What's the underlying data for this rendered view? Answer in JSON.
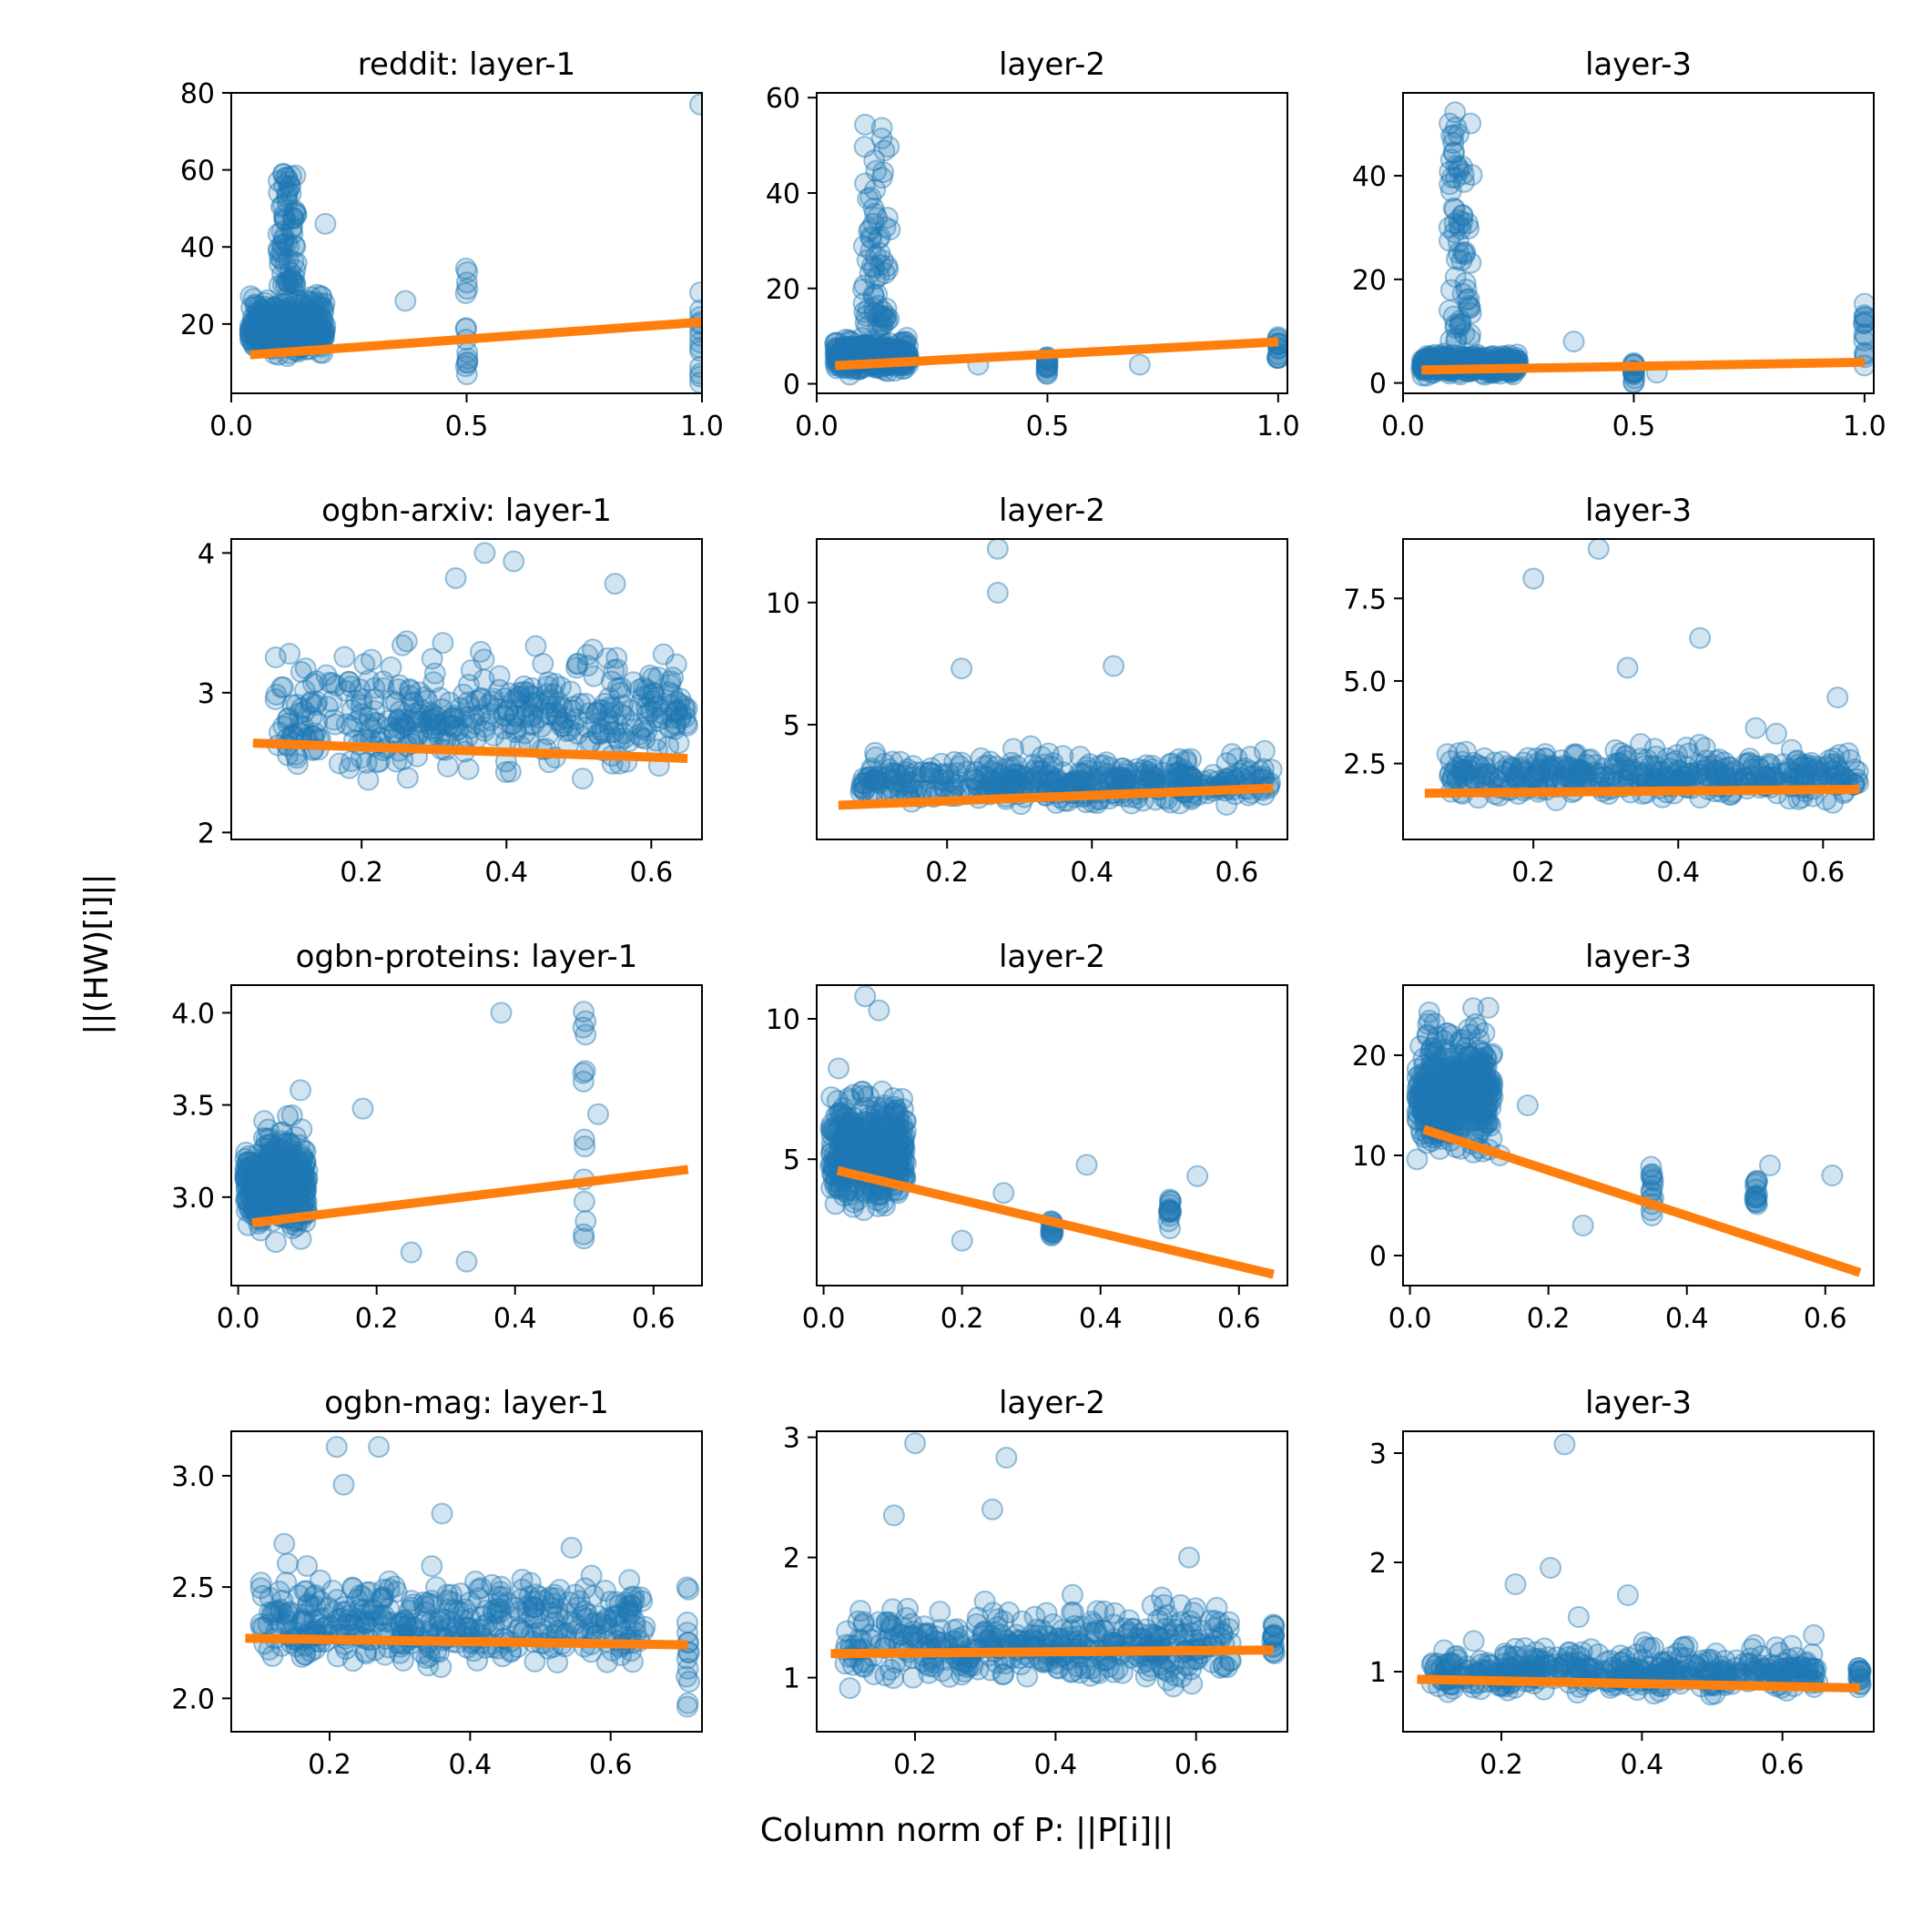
{
  "figure": {
    "ylabel": "||(HW)[i]||",
    "xlabel": "Column norm of P: ||P[i]||"
  },
  "chart_data": [
    {
      "type": "scatter",
      "title": "reddit: layer-1",
      "dataset": "reddit",
      "layer": 1,
      "xlim": [
        0,
        1.0
      ],
      "ylim": [
        2,
        80
      ],
      "xticks": [
        0.0,
        0.5,
        1.0
      ],
      "yticks": [
        20,
        40,
        60,
        80
      ],
      "x_cluster": [
        0.04,
        0.2
      ],
      "y_cluster": [
        5,
        30
      ],
      "spike_x": [
        0.1,
        0.14
      ],
      "spike_y": [
        30,
        60
      ],
      "stripes": [
        [
          0.5,
          5,
          37
        ],
        [
          1.0,
          3,
          29
        ]
      ],
      "outliers": [
        [
          1.0,
          77
        ],
        [
          0.37,
          26
        ],
        [
          0.2,
          46
        ]
      ],
      "fit": {
        "x": [
          0.04,
          1.0
        ],
        "y": [
          12,
          20.5
        ]
      },
      "point_color": "#1f77b4",
      "fit_color": "#ff7f0e"
    },
    {
      "type": "scatter",
      "title": "layer-2",
      "dataset": "reddit",
      "layer": 2,
      "xlim": [
        0,
        1.02
      ],
      "ylim": [
        -2,
        61
      ],
      "xticks": [
        0.0,
        0.5,
        1.0
      ],
      "yticks": [
        0,
        20,
        40,
        60
      ],
      "x_cluster": [
        0.04,
        0.2
      ],
      "y_cluster": [
        0,
        10
      ],
      "spike_x": [
        0.1,
        0.16
      ],
      "spike_y": [
        12,
        57
      ],
      "stripes": [
        [
          0.5,
          2,
          6
        ],
        [
          1.0,
          5,
          10
        ]
      ],
      "outliers": [
        [
          0.35,
          4
        ],
        [
          0.7,
          4
        ]
      ],
      "fit": {
        "x": [
          0.04,
          1.0
        ],
        "y": [
          3.8,
          8.8
        ]
      },
      "point_color": "#1f77b4",
      "fit_color": "#ff7f0e"
    },
    {
      "type": "scatter",
      "title": "layer-3",
      "dataset": "reddit",
      "layer": 3,
      "xlim": [
        0,
        1.02
      ],
      "ylim": [
        -2,
        56
      ],
      "xticks": [
        0.0,
        0.5,
        1.0
      ],
      "yticks": [
        0,
        20,
        40
      ],
      "x_cluster": [
        0.04,
        0.25
      ],
      "y_cluster": [
        0,
        6
      ],
      "spike_x": [
        0.1,
        0.15
      ],
      "spike_y": [
        8,
        53
      ],
      "stripes": [
        [
          0.5,
          0,
          4
        ],
        [
          1.0,
          3,
          16
        ]
      ],
      "outliers": [
        [
          0.37,
          8
        ],
        [
          0.55,
          2
        ]
      ],
      "fit": {
        "x": [
          0.04,
          1.0
        ],
        "y": [
          2.5,
          4
        ]
      },
      "point_color": "#1f77b4",
      "fit_color": "#ff7f0e"
    },
    {
      "type": "scatter",
      "title": "ogbn-arxiv: layer-1",
      "dataset": "ogbn-arxiv",
      "layer": 1,
      "xlim": [
        0.02,
        0.67
      ],
      "ylim": [
        1.95,
        4.1
      ],
      "xticks": [
        0.2,
        0.4,
        0.6
      ],
      "yticks": [
        2,
        3,
        4
      ],
      "x_cluster": [
        0.08,
        0.65
      ],
      "y_cluster": [
        2.05,
        3.4
      ],
      "spike_x": null,
      "spike_y": null,
      "stripes": [],
      "outliers": [
        [
          0.37,
          4.0
        ],
        [
          0.33,
          3.82
        ],
        [
          0.41,
          3.94
        ],
        [
          0.55,
          3.78
        ]
      ],
      "fit": {
        "x": [
          0.05,
          0.65
        ],
        "y": [
          2.64,
          2.53
        ]
      },
      "point_color": "#1f77b4",
      "fit_color": "#ff7f0e"
    },
    {
      "type": "scatter",
      "title": "layer-2",
      "dataset": "ogbn-arxiv",
      "layer": 2,
      "xlim": [
        0.02,
        0.67
      ],
      "ylim": [
        0.3,
        12.6
      ],
      "xticks": [
        0.2,
        0.4,
        0.6
      ],
      "yticks": [
        5,
        10
      ],
      "x_cluster": [
        0.08,
        0.65
      ],
      "y_cluster": [
        0.9,
        4
      ],
      "spike_x": null,
      "spike_y": null,
      "stripes": [],
      "outliers": [
        [
          0.27,
          12.2
        ],
        [
          0.27,
          10.4
        ],
        [
          0.22,
          7.3
        ],
        [
          0.43,
          7.4
        ]
      ],
      "fit": {
        "x": [
          0.05,
          0.65
        ],
        "y": [
          1.7,
          2.4
        ]
      },
      "point_color": "#1f77b4",
      "fit_color": "#ff7f0e"
    },
    {
      "type": "scatter",
      "title": "layer-3",
      "dataset": "ogbn-arxiv",
      "layer": 3,
      "xlim": [
        0.02,
        0.67
      ],
      "ylim": [
        0.2,
        9.3
      ],
      "xticks": [
        0.2,
        0.4,
        0.6
      ],
      "yticks": [
        2.5,
        5.0,
        7.5
      ],
      "x_cluster": [
        0.08,
        0.65
      ],
      "y_cluster": [
        0.7,
        3.2
      ],
      "spike_x": null,
      "spike_y": null,
      "stripes": [],
      "outliers": [
        [
          0.29,
          9.0
        ],
        [
          0.2,
          8.1
        ],
        [
          0.43,
          6.3
        ],
        [
          0.33,
          5.4
        ],
        [
          0.62,
          4.5
        ]
      ],
      "fit": {
        "x": [
          0.05,
          0.65
        ],
        "y": [
          1.6,
          1.72
        ]
      },
      "point_color": "#1f77b4",
      "fit_color": "#ff7f0e"
    },
    {
      "type": "scatter",
      "title": "ogbn-proteins: layer-1",
      "dataset": "ogbn-proteins",
      "layer": 1,
      "xlim": [
        -0.01,
        0.67
      ],
      "ylim": [
        2.52,
        4.15
      ],
      "xticks": [
        0.0,
        0.2,
        0.4,
        0.6
      ],
      "yticks": [
        3.0,
        3.5,
        4.0
      ],
      "x_cluster": [
        0.01,
        0.1
      ],
      "y_cluster": [
        2.6,
        3.4
      ],
      "spike_x": null,
      "spike_y": null,
      "stripes": [
        [
          0.5,
          2.7,
          4.05
        ]
      ],
      "outliers": [
        [
          0.38,
          4.0
        ],
        [
          0.18,
          3.48
        ],
        [
          0.09,
          3.58
        ],
        [
          0.52,
          3.45
        ],
        [
          0.25,
          2.7
        ],
        [
          0.33,
          2.65
        ]
      ],
      "fit": {
        "x": [
          0.02,
          0.65
        ],
        "y": [
          2.86,
          3.15
        ]
      },
      "point_color": "#1f77b4",
      "fit_color": "#ff7f0e"
    },
    {
      "type": "scatter",
      "title": "layer-2",
      "dataset": "ogbn-proteins",
      "layer": 2,
      "xlim": [
        -0.01,
        0.67
      ],
      "ylim": [
        0.5,
        11.2
      ],
      "xticks": [
        0.0,
        0.2,
        0.4,
        0.6
      ],
      "yticks": [
        5,
        10
      ],
      "x_cluster": [
        0.01,
        0.12
      ],
      "y_cluster": [
        1.5,
        8
      ],
      "spike_x": null,
      "spike_y": null,
      "stripes": [
        [
          0.33,
          2.2,
          2.8
        ],
        [
          0.5,
          2.5,
          3.6
        ]
      ],
      "outliers": [
        [
          0.06,
          10.8
        ],
        [
          0.08,
          10.3
        ],
        [
          0.38,
          4.8
        ],
        [
          0.54,
          4.4
        ],
        [
          0.26,
          3.8
        ],
        [
          0.2,
          2.1
        ]
      ],
      "fit": {
        "x": [
          0.02,
          0.65
        ],
        "y": [
          4.6,
          0.9
        ]
      },
      "point_color": "#1f77b4",
      "fit_color": "#ff7f0e"
    },
    {
      "type": "scatter",
      "title": "layer-3",
      "dataset": "ogbn-proteins",
      "layer": 3,
      "xlim": [
        -0.01,
        0.67
      ],
      "ylim": [
        -3,
        27
      ],
      "xticks": [
        0.0,
        0.2,
        0.4,
        0.6
      ],
      "yticks": [
        0,
        10,
        20
      ],
      "x_cluster": [
        0.01,
        0.12
      ],
      "y_cluster": [
        5,
        25
      ],
      "spike_x": null,
      "spike_y": null,
      "stripes": [
        [
          0.5,
          5,
          7.5
        ],
        [
          0.35,
          4,
          9
        ]
      ],
      "outliers": [
        [
          0.17,
          15
        ],
        [
          0.61,
          8
        ],
        [
          0.52,
          9
        ],
        [
          0.13,
          10
        ],
        [
          0.25,
          3
        ]
      ],
      "fit": {
        "x": [
          0.02,
          0.65
        ],
        "y": [
          12.6,
          -1.7
        ]
      },
      "point_color": "#1f77b4",
      "fit_color": "#ff7f0e"
    },
    {
      "type": "scatter",
      "title": "ogbn-mag: layer-1",
      "dataset": "ogbn-mag",
      "layer": 1,
      "xlim": [
        0.06,
        0.73
      ],
      "ylim": [
        1.85,
        3.2
      ],
      "xticks": [
        0.2,
        0.4,
        0.6
      ],
      "yticks": [
        2.0,
        2.5,
        3.0
      ],
      "x_cluster": [
        0.1,
        0.65
      ],
      "y_cluster": [
        1.95,
        2.65
      ],
      "spike_x": null,
      "spike_y": null,
      "stripes": [
        [
          0.71,
          1.95,
          2.5
        ]
      ],
      "outliers": [
        [
          0.21,
          3.13
        ],
        [
          0.27,
          3.13
        ],
        [
          0.22,
          2.96
        ],
        [
          0.36,
          2.83
        ]
      ],
      "fit": {
        "x": [
          0.08,
          0.71
        ],
        "y": [
          2.27,
          2.24
        ]
      },
      "point_color": "#1f77b4",
      "fit_color": "#ff7f0e"
    },
    {
      "type": "scatter",
      "title": "layer-2",
      "dataset": "ogbn-mag",
      "layer": 2,
      "xlim": [
        0.06,
        0.73
      ],
      "ylim": [
        0.55,
        3.05
      ],
      "xticks": [
        0.2,
        0.4,
        0.6
      ],
      "yticks": [
        1,
        2,
        3
      ],
      "x_cluster": [
        0.1,
        0.65
      ],
      "y_cluster": [
        0.7,
        1.7
      ],
      "spike_x": null,
      "spike_y": null,
      "stripes": [
        [
          0.71,
          1.2,
          1.45
        ]
      ],
      "outliers": [
        [
          0.2,
          2.95
        ],
        [
          0.33,
          2.83
        ],
        [
          0.17,
          2.35
        ],
        [
          0.31,
          2.4
        ],
        [
          0.59,
          2.0
        ]
      ],
      "fit": {
        "x": [
          0.08,
          0.71
        ],
        "y": [
          1.2,
          1.23
        ]
      },
      "point_color": "#1f77b4",
      "fit_color": "#ff7f0e"
    },
    {
      "type": "scatter",
      "title": "layer-3",
      "dataset": "ogbn-mag",
      "layer": 3,
      "xlim": [
        0.06,
        0.73
      ],
      "ylim": [
        0.45,
        3.2
      ],
      "xticks": [
        0.2,
        0.4,
        0.6
      ],
      "yticks": [
        1,
        2,
        3
      ],
      "x_cluster": [
        0.1,
        0.65
      ],
      "y_cluster": [
        0.6,
        1.3
      ],
      "spike_x": null,
      "spike_y": null,
      "stripes": [
        [
          0.71,
          0.85,
          1.05
        ]
      ],
      "outliers": [
        [
          0.29,
          3.08
        ],
        [
          0.27,
          1.95
        ],
        [
          0.22,
          1.8
        ],
        [
          0.31,
          1.5
        ],
        [
          0.38,
          1.7
        ]
      ],
      "fit": {
        "x": [
          0.08,
          0.71
        ],
        "y": [
          0.93,
          0.85
        ]
      },
      "point_color": "#1f77b4",
      "fit_color": "#ff7f0e"
    }
  ]
}
